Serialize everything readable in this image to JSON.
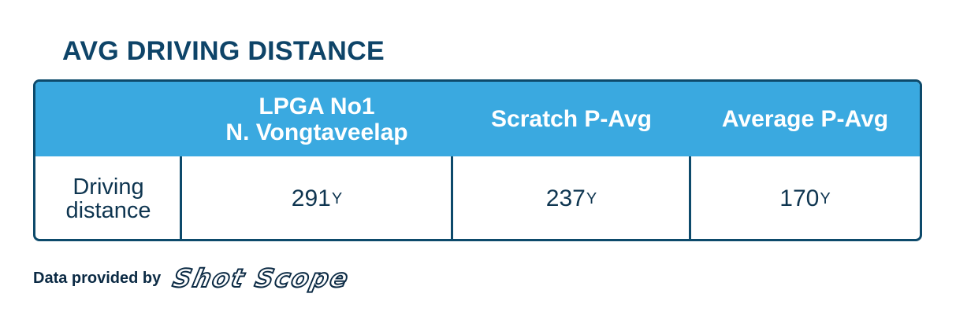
{
  "title": "AVG DRIVING DISTANCE",
  "table": {
    "columns": [
      {
        "line1": "",
        "line2": ""
      },
      {
        "line1": "LPGA No1",
        "line2": "N. Vongtaveelap"
      },
      {
        "line1": "Scratch P-Avg",
        "line2": ""
      },
      {
        "line1": "Average P-Avg",
        "line2": ""
      }
    ],
    "row": {
      "label_line1": "Driving",
      "label_line2": "distance",
      "values": [
        {
          "value": "291",
          "unit": "Y"
        },
        {
          "value": "237",
          "unit": "Y"
        },
        {
          "value": "170",
          "unit": "Y"
        }
      ]
    }
  },
  "footer": {
    "text": "Data provided by",
    "logo_text": "Shot Scope"
  },
  "colors": {
    "header_bg": "#3aa9e0",
    "border": "#0d4a6b",
    "title": "#0e4468"
  }
}
